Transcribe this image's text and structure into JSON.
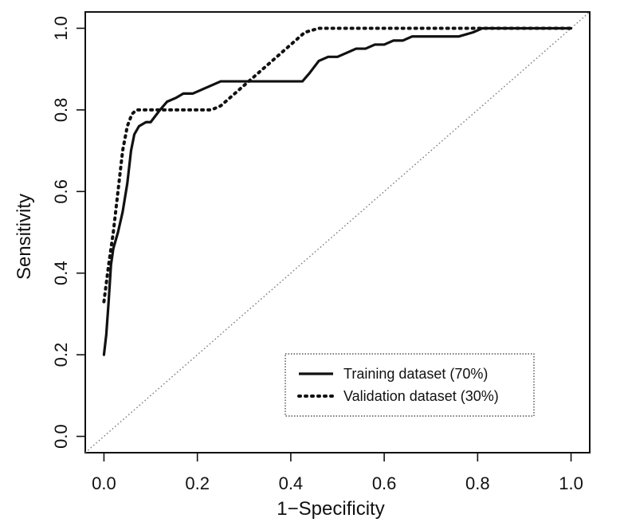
{
  "chart_data": {
    "type": "line",
    "title": "",
    "xlabel": "1−Specificity",
    "ylabel": "Sensitivity",
    "xlim": [
      -0.04,
      1.04
    ],
    "ylim": [
      -0.04,
      1.04
    ],
    "x_ticks": [
      "0.0",
      "0.2",
      "0.4",
      "0.6",
      "0.8",
      "1.0"
    ],
    "y_ticks": [
      "0.0",
      "0.2",
      "0.4",
      "0.6",
      "0.8",
      "1.0"
    ],
    "grid": false,
    "legend": {
      "position": "bottom-right"
    },
    "reference_line": {
      "style": "dotted",
      "from": [
        0,
        0
      ],
      "to": [
        1,
        1
      ]
    },
    "series": [
      {
        "name": "Training dataset (70%)",
        "style": "solid",
        "points": [
          [
            0,
            0.2
          ],
          [
            0.005,
            0.25
          ],
          [
            0.01,
            0.33
          ],
          [
            0.015,
            0.42
          ],
          [
            0.02,
            0.46
          ],
          [
            0.03,
            0.5
          ],
          [
            0.04,
            0.55
          ],
          [
            0.05,
            0.62
          ],
          [
            0.058,
            0.7
          ],
          [
            0.065,
            0.74
          ],
          [
            0.075,
            0.76
          ],
          [
            0.09,
            0.77
          ],
          [
            0.1,
            0.77
          ],
          [
            0.12,
            0.8
          ],
          [
            0.135,
            0.82
          ],
          [
            0.155,
            0.83
          ],
          [
            0.17,
            0.84
          ],
          [
            0.19,
            0.84
          ],
          [
            0.21,
            0.85
          ],
          [
            0.23,
            0.86
          ],
          [
            0.25,
            0.87
          ],
          [
            0.3,
            0.87
          ],
          [
            0.35,
            0.87
          ],
          [
            0.4,
            0.87
          ],
          [
            0.425,
            0.87
          ],
          [
            0.44,
            0.89
          ],
          [
            0.46,
            0.92
          ],
          [
            0.48,
            0.93
          ],
          [
            0.5,
            0.93
          ],
          [
            0.52,
            0.94
          ],
          [
            0.54,
            0.95
          ],
          [
            0.56,
            0.95
          ],
          [
            0.58,
            0.96
          ],
          [
            0.6,
            0.96
          ],
          [
            0.62,
            0.97
          ],
          [
            0.64,
            0.97
          ],
          [
            0.66,
            0.98
          ],
          [
            0.7,
            0.98
          ],
          [
            0.76,
            0.98
          ],
          [
            0.79,
            0.99
          ],
          [
            0.81,
            1.0
          ],
          [
            1.0,
            1.0
          ]
        ]
      },
      {
        "name": "Validation dataset (30%)",
        "style": "dotted",
        "points": [
          [
            0,
            0.33
          ],
          [
            0.01,
            0.42
          ],
          [
            0.02,
            0.5
          ],
          [
            0.03,
            0.6
          ],
          [
            0.04,
            0.7
          ],
          [
            0.05,
            0.76
          ],
          [
            0.06,
            0.79
          ],
          [
            0.07,
            0.8
          ],
          [
            0.1,
            0.8
          ],
          [
            0.14,
            0.8
          ],
          [
            0.2,
            0.8
          ],
          [
            0.23,
            0.8
          ],
          [
            0.25,
            0.81
          ],
          [
            0.28,
            0.84
          ],
          [
            0.31,
            0.87
          ],
          [
            0.34,
            0.9
          ],
          [
            0.37,
            0.93
          ],
          [
            0.4,
            0.96
          ],
          [
            0.43,
            0.99
          ],
          [
            0.46,
            1.0
          ],
          [
            0.5,
            1.0
          ],
          [
            0.6,
            1.0
          ],
          [
            0.8,
            1.0
          ],
          [
            1.0,
            1.0
          ]
        ]
      }
    ]
  }
}
